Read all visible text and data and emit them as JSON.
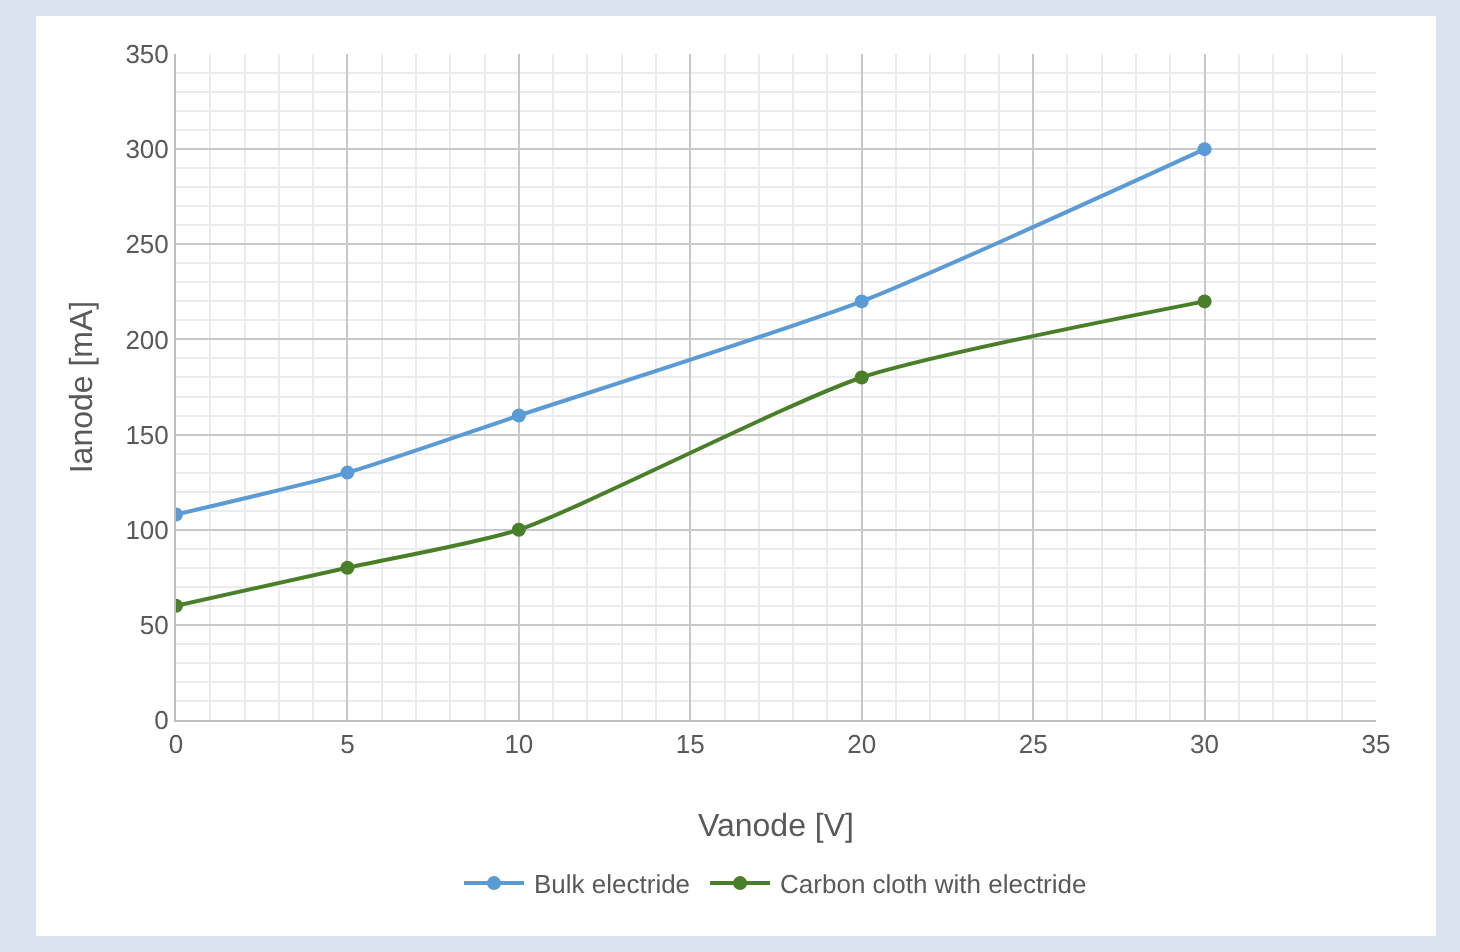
{
  "chart_data": {
    "type": "line",
    "xlabel": "Vanode [V]",
    "ylabel": "Ianode [mA]",
    "x": [
      0,
      5,
      10,
      20,
      30
    ],
    "series": [
      {
        "name": "Bulk electride",
        "color": "#5b9bd5",
        "values": [
          108,
          130,
          160,
          220,
          300
        ]
      },
      {
        "name": "Carbon cloth with electride",
        "color": "#4a7f2a",
        "values": [
          60,
          80,
          100,
          180,
          220
        ]
      }
    ],
    "xlim": [
      0,
      35
    ],
    "xticks": [
      0,
      5,
      10,
      15,
      20,
      25,
      30,
      35
    ],
    "ylim": [
      0,
      350
    ],
    "yticks": [
      0,
      50,
      100,
      150,
      200,
      250,
      300,
      350
    ],
    "grid": true,
    "legend": "bottom",
    "marker": "circle",
    "line_style": "solid"
  }
}
